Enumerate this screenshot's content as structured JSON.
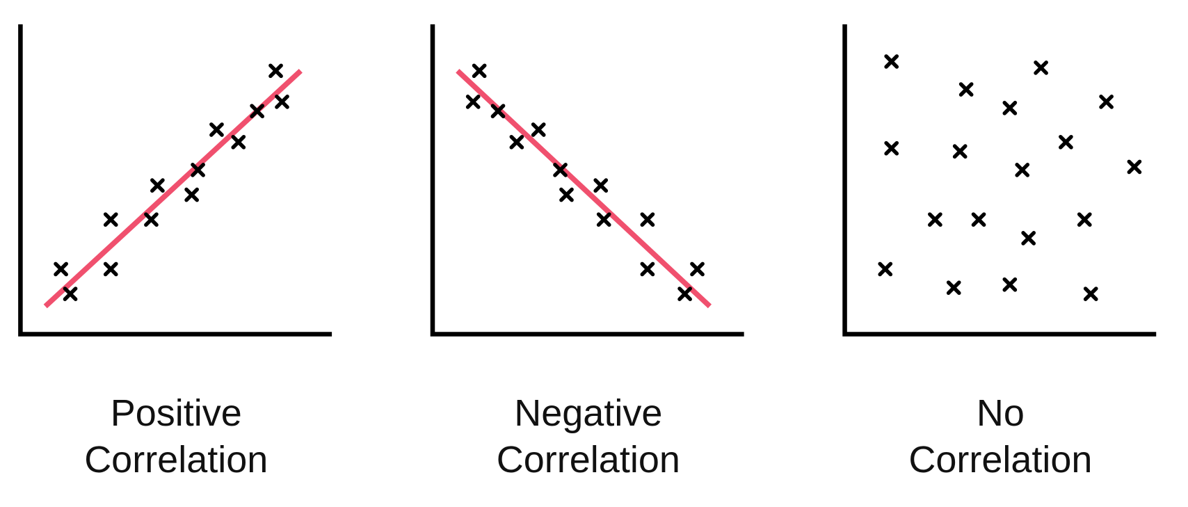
{
  "chart_data": [
    {
      "type": "scatter",
      "title": "Positive Correlation",
      "xlim": [
        0,
        100
      ],
      "ylim": [
        0,
        100
      ],
      "color": "#000000",
      "x": [
        13,
        16,
        29,
        29,
        42,
        44,
        55,
        57,
        63,
        70,
        76,
        82,
        84
      ],
      "values": [
        21,
        13,
        37,
        21,
        37,
        48,
        45,
        53,
        66,
        62,
        72,
        85,
        75
      ],
      "trendline": {
        "x": [
          8,
          90
        ],
        "values": [
          9,
          85
        ],
        "color": "#f0506e"
      }
    },
    {
      "type": "scatter",
      "title": "Negative Correlation",
      "xlim": [
        0,
        100
      ],
      "ylim": [
        0,
        100
      ],
      "color": "#000000",
      "x": [
        15,
        13,
        21,
        27,
        34,
        41,
        43,
        54,
        55,
        69,
        69,
        81,
        85
      ],
      "values": [
        85,
        75,
        72,
        62,
        66,
        53,
        45,
        48,
        37,
        37,
        21,
        13,
        21
      ],
      "trendline": {
        "x": [
          8,
          89
        ],
        "values": [
          85,
          9
        ],
        "color": "#f0506e"
      }
    },
    {
      "type": "scatter",
      "title": "No Correlation",
      "xlim": [
        0,
        100
      ],
      "ylim": [
        0,
        100
      ],
      "color": "#000000",
      "x": [
        15,
        39,
        63,
        53,
        84,
        15,
        37,
        71,
        57,
        93,
        29,
        43,
        77,
        59,
        13,
        35,
        53,
        79
      ],
      "values": [
        88,
        79,
        86,
        73,
        75,
        60,
        59,
        62,
        53,
        54,
        37,
        37,
        37,
        31,
        21,
        15,
        16,
        13
      ]
    }
  ]
}
